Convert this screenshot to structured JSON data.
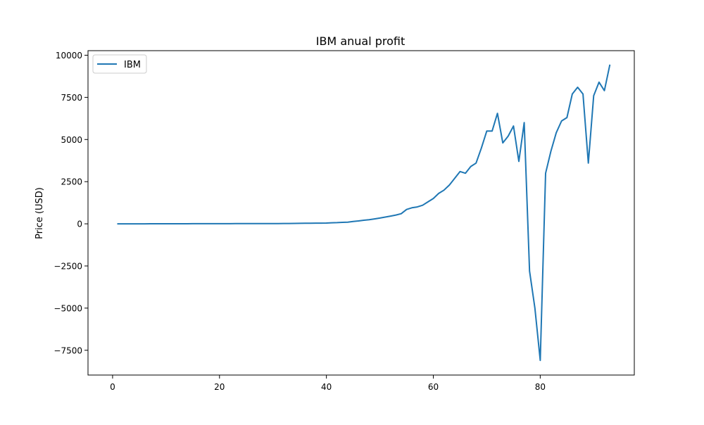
{
  "chart_data": {
    "type": "line",
    "title": "IBM anual profit",
    "xlabel": "",
    "ylabel": "Price (USD)",
    "xlim": [
      -4.6,
      97.6
    ],
    "ylim": [
      -8970,
      10270
    ],
    "xticks": [
      0,
      20,
      40,
      60,
      80
    ],
    "yticks": [
      -7500,
      -5000,
      -2500,
      0,
      2500,
      5000,
      7500,
      10000
    ],
    "xtick_labels": [
      "0",
      "20",
      "40",
      "60",
      "80"
    ],
    "ytick_labels": [
      "−7500",
      "−5000",
      "−2500",
      "0",
      "2500",
      "5000",
      "7500",
      "10000"
    ],
    "grid": false,
    "legend": {
      "position": "top-left"
    },
    "series": [
      {
        "name": "IBM",
        "color": "#1f77b4",
        "x": [
          1,
          2,
          3,
          4,
          5,
          6,
          7,
          8,
          9,
          10,
          11,
          12,
          13,
          14,
          15,
          16,
          17,
          18,
          19,
          20,
          21,
          22,
          23,
          24,
          25,
          26,
          27,
          28,
          29,
          30,
          31,
          32,
          33,
          34,
          35,
          36,
          37,
          38,
          39,
          40,
          41,
          42,
          43,
          44,
          45,
          46,
          47,
          48,
          49,
          50,
          51,
          52,
          53,
          54,
          55,
          56,
          57,
          58,
          59,
          60,
          61,
          62,
          63,
          64,
          65,
          66,
          67,
          68,
          69,
          70,
          71,
          72,
          73,
          74,
          75,
          76,
          77,
          78,
          79,
          80,
          81,
          82,
          83,
          84,
          85,
          86,
          87,
          88,
          89,
          90,
          91,
          92,
          93
        ],
        "values": [
          0,
          0,
          0,
          1,
          1,
          1,
          2,
          2,
          2,
          3,
          3,
          4,
          4,
          5,
          6,
          7,
          8,
          8,
          8,
          8,
          9,
          9,
          10,
          10,
          11,
          11,
          12,
          12,
          13,
          14,
          15,
          18,
          20,
          25,
          30,
          34,
          38,
          40,
          42,
          45,
          60,
          70,
          85,
          100,
          140,
          170,
          210,
          240,
          290,
          340,
          400,
          460,
          520,
          600,
          850,
          950,
          1000,
          1100,
          1300,
          1500,
          1800,
          2000,
          2300,
          2700,
          3100,
          3000,
          3400,
          3600,
          4500,
          5500,
          5500,
          6550,
          4800,
          5200,
          5800,
          3700,
          6000,
          -2800,
          -5000,
          -8100,
          3000,
          4300,
          5400,
          6100,
          6300,
          7700,
          8100,
          7700,
          3600,
          7600,
          8400,
          7900,
          9400
        ]
      }
    ]
  }
}
